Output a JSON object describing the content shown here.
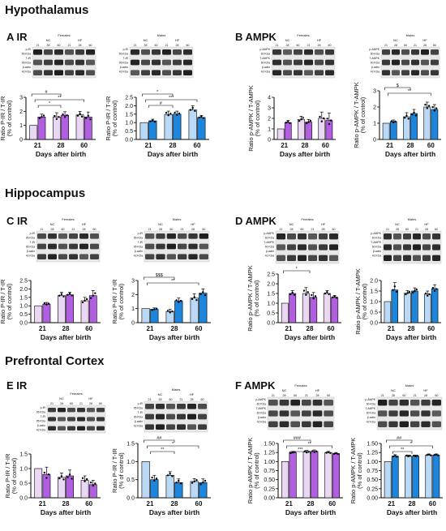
{
  "sections": [
    {
      "title": "Hypothalamus"
    },
    {
      "title": "Hippocampus"
    },
    {
      "title": "Prefrontal Cortex"
    }
  ],
  "figures": [
    "A IR",
    "B AMPK",
    "C IR",
    "D AMPK",
    "E IR",
    "F AMPK"
  ],
  "blot_text": {
    "females": "Females",
    "males": "Males",
    "nc": "NC",
    "hf": "HF",
    "lanes": [
      "21",
      "28",
      "60",
      "21",
      "28",
      "60"
    ],
    "ir_rows": [
      "p-IR",
      "95 KDa",
      "T-IR",
      "95 KDa",
      "β-actin",
      "42 KDa"
    ],
    "ampk_rows": [
      "p-AMPK",
      "60 KDa",
      "T-AMPK",
      "60 KDa",
      "β-actin",
      "42 KDa"
    ]
  },
  "colors": {
    "female_nc": "#ead7f3",
    "female_hf": "#b15fe0",
    "male_nc": "#b9d9f6",
    "male_hf": "#1d86dc",
    "dot": "#000000"
  },
  "chart_data": [
    {
      "type": "bar",
      "panel": "A-females",
      "categories": [
        "21",
        "28",
        "60"
      ],
      "xlabel": "Days after birth",
      "ylabel": "Ratio P-IR / T-IR",
      "ylabel2": "(% of control)",
      "ylim": [
        0,
        3
      ],
      "yticks": [
        "0",
        "1",
        "2",
        "3"
      ],
      "series": [
        {
          "values": [
            1.0,
            1.6,
            1.75
          ]
        },
        {
          "values": [
            1.6,
            1.72,
            1.6
          ]
        }
      ],
      "errors": [
        [
          0,
          0.2
        ],
        [
          0.3,
          0.25
        ],
        [
          0.25,
          0.35
        ]
      ],
      "annotations": [
        "#",
        "**",
        "*"
      ]
    },
    {
      "type": "bar",
      "panel": "A-males",
      "categories": [
        "21",
        "28",
        "60"
      ],
      "xlabel": "Days after birth",
      "ylabel": "Ratio P-IR / T-IR",
      "ylabel2": "(% of control)",
      "ylim": [
        0,
        2.5
      ],
      "yticks": [
        "0.0",
        "0.5",
        "1.0",
        "1.5",
        "2.0",
        "2.5"
      ],
      "series": [
        {
          "values": [
            1.0,
            1.48,
            1.75
          ]
        },
        {
          "values": [
            1.1,
            1.5,
            1.3
          ]
        }
      ],
      "errors": [
        [
          0,
          0.1
        ],
        [
          0.2,
          0.18
        ],
        [
          0.25,
          0.12
        ]
      ],
      "annotations": [
        "*",
        "***",
        "#"
      ]
    },
    {
      "type": "bar",
      "panel": "B-females",
      "categories": [
        "21",
        "28",
        "60"
      ],
      "xlabel": "Days after birth",
      "ylabel": "Ratio p-AMPK / T-AMPK",
      "ylabel2": "(% of control)",
      "ylim": [
        0,
        4
      ],
      "yticks": [
        "0",
        "1",
        "2",
        "3",
        "4"
      ],
      "series": [
        {
          "values": [
            1.0,
            1.9,
            2.0
          ]
        },
        {
          "values": [
            1.6,
            1.65,
            1.8
          ]
        }
      ],
      "errors": [
        [
          0,
          0.2
        ],
        [
          0.3,
          0.25
        ],
        [
          0.6,
          0.7
        ]
      ],
      "annotations": []
    },
    {
      "type": "bar",
      "panel": "B-males",
      "categories": [
        "21",
        "28",
        "60"
      ],
      "xlabel": "Days after birth",
      "ylabel": "Ratio p-AMPK / T-AMPK",
      "ylabel2": "(% of control)",
      "ylim": [
        0,
        3
      ],
      "yticks": [
        "0",
        "1",
        "2",
        "3"
      ],
      "series": [
        {
          "values": [
            1.0,
            1.4,
            2.0
          ]
        },
        {
          "values": [
            1.1,
            1.6,
            1.85
          ]
        }
      ],
      "errors": [
        [
          0,
          0.1
        ],
        [
          0.25,
          0.25
        ],
        [
          0.3,
          0.3
        ]
      ],
      "annotations": [
        "$",
        "**"
      ]
    },
    {
      "type": "bar",
      "panel": "C-females",
      "categories": [
        "21",
        "28",
        "60"
      ],
      "xlabel": "Days after birth",
      "ylabel": "Ratio P-IR / T-IR",
      "ylabel2": "(% of control)",
      "ylim": [
        0,
        2.5
      ],
      "yticks": [
        "0.0",
        "0.5",
        "1.0",
        "1.5",
        "2.0",
        "2.5"
      ],
      "series": [
        {
          "values": [
            1.0,
            1.6,
            1.3
          ]
        },
        {
          "values": [
            1.1,
            1.65,
            1.6
          ]
        }
      ],
      "errors": [
        [
          0,
          0.1
        ],
        [
          0.2,
          0.15
        ],
        [
          0.2,
          0.3
        ]
      ],
      "annotations": []
    },
    {
      "type": "bar",
      "panel": "C-males",
      "categories": [
        "21",
        "28",
        "60"
      ],
      "xlabel": "Days after birth",
      "ylabel": "Ratio P-IR / T-IR",
      "ylabel2": "(% of control)",
      "ylim": [
        0,
        3
      ],
      "yticks": [
        "0",
        "1",
        "2",
        "3"
      ],
      "series": [
        {
          "values": [
            1.0,
            0.8,
            1.75
          ]
        },
        {
          "values": [
            0.95,
            1.55,
            2.1
          ]
        }
      ],
      "errors": [
        [
          0,
          0.1
        ],
        [
          0.15,
          0.2
        ],
        [
          0.3,
          0.3
        ]
      ],
      "annotations": [
        "$$$",
        "**"
      ]
    },
    {
      "type": "bar",
      "panel": "D-females",
      "categories": [
        "21",
        "28",
        "60"
      ],
      "xlabel": "Days after birth",
      "ylabel": "Ratio p-AMPK / T-AMPK",
      "ylabel2": "(% of control)",
      "ylim": [
        0,
        2.5
      ],
      "yticks": [
        "0.0",
        "0.5",
        "1.0",
        "1.5",
        "2.0",
        "2.5"
      ],
      "series": [
        {
          "values": [
            1.0,
            1.5,
            1.5
          ]
        },
        {
          "values": [
            1.5,
            1.3,
            1.3
          ]
        }
      ],
      "errors": [
        [
          0,
          0.15
        ],
        [
          0.3,
          0.25
        ],
        [
          0.15,
          0.1
        ]
      ],
      "annotations": [
        "*"
      ]
    },
    {
      "type": "bar",
      "panel": "D-males",
      "categories": [
        "21",
        "28",
        "60"
      ],
      "xlabel": "Days after birth",
      "ylabel": "Ratio p-AMPK / T-AMPK",
      "ylabel2": "(% of control)",
      "ylim": [
        0,
        2
      ],
      "yticks": [
        "0.0",
        "0.5",
        "1.0",
        "1.5",
        "2.0"
      ],
      "series": [
        {
          "values": [
            1.0,
            1.4,
            1.35
          ]
        },
        {
          "values": [
            1.55,
            1.5,
            1.6
          ]
        }
      ],
      "errors": [
        [
          0,
          0.35
        ],
        [
          0.12,
          0.15
        ],
        [
          0.15,
          0.2
        ]
      ],
      "annotations": []
    },
    {
      "type": "bar",
      "panel": "E-females",
      "categories": [
        "21",
        "28",
        "60"
      ],
      "xlabel": "Days after birth",
      "ylabel": "Ratio P-IR / T-IR",
      "ylabel2": "(% of control)",
      "ylim": [
        0,
        1.5
      ],
      "yticks": [
        "0.0",
        "0.5",
        "1.0",
        "1.5"
      ],
      "series": [
        {
          "values": [
            1.0,
            0.7,
            0.6
          ]
        },
        {
          "values": [
            0.8,
            0.75,
            0.45
          ]
        }
      ],
      "errors": [
        [
          0,
          0.25
        ],
        [
          0.15,
          0.2
        ],
        [
          0.15,
          0.15
        ]
      ],
      "annotations": []
    },
    {
      "type": "bar",
      "panel": "E-males",
      "categories": [
        "21",
        "28",
        "60"
      ],
      "xlabel": "Days after birth",
      "ylabel": "Ratio P-IR / T-IR",
      "ylabel2": "(% of control)",
      "ylim": [
        0,
        1.5
      ],
      "yticks": [
        "0.0",
        "0.5",
        "1.0",
        "1.5"
      ],
      "series": [
        {
          "values": [
            1.0,
            0.62,
            0.45
          ]
        },
        {
          "values": [
            0.5,
            0.42,
            0.42
          ]
        }
      ],
      "errors": [
        [
          0,
          0.12
        ],
        [
          0.1,
          0.1
        ],
        [
          0.08,
          0.1
        ]
      ],
      "annotations": [
        "##",
        "*",
        "**"
      ]
    },
    {
      "type": "bar",
      "panel": "F-females",
      "categories": [
        "21",
        "28",
        "60"
      ],
      "xlabel": "Days after birth",
      "ylabel": "Ratio p-AMPK / T-AMPK",
      "ylabel2": "(% of control)",
      "ylim": [
        0,
        1.5
      ],
      "yticks": [
        "0.00",
        "0.25",
        "0.50",
        "0.75",
        "1.00",
        "1.25",
        "1.50"
      ],
      "series": [
        {
          "values": [
            1.0,
            1.27,
            1.25
          ]
        },
        {
          "values": [
            1.25,
            1.28,
            1.22
          ]
        }
      ],
      "errors": [
        [
          0,
          0.03
        ],
        [
          0.04,
          0.04
        ],
        [
          0.03,
          0.03
        ]
      ],
      "annotations": [
        "###",
        "**",
        "***"
      ]
    },
    {
      "type": "bar",
      "panel": "F-males",
      "categories": [
        "21",
        "28",
        "60"
      ],
      "xlabel": "Days after birth",
      "ylabel": "Ratio p-AMPK / T-AMPK",
      "ylabel2": "(% of control)",
      "ylim": [
        0,
        1.5
      ],
      "yticks": [
        "0.00",
        "0.25",
        "0.50",
        "0.75",
        "1.00",
        "1.25",
        "1.50"
      ],
      "series": [
        {
          "values": [
            1.0,
            1.15,
            1.18
          ]
        },
        {
          "values": [
            1.15,
            1.15,
            1.18
          ]
        }
      ],
      "errors": [
        [
          0,
          0.04
        ],
        [
          0.03,
          0.03
        ],
        [
          0.03,
          0.03
        ]
      ],
      "annotations": [
        "##",
        "*",
        "**"
      ]
    }
  ]
}
